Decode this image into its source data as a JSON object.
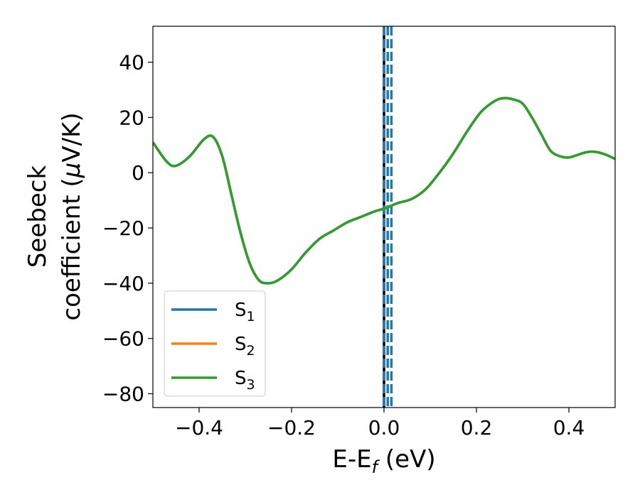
{
  "chart_data": {
    "type": "line",
    "xlabel": {
      "prefix": "E-E",
      "sub": "f",
      "suffix": " (eV)"
    },
    "ylabel": {
      "line1": "Seebeck",
      "line2_prefix": "coefficient  (",
      "mu": "μ",
      "line2_suffix": "V/K)"
    },
    "xlim": [
      -0.5,
      0.5
    ],
    "ylim": [
      -85,
      53
    ],
    "xticks": [
      -0.4,
      -0.2,
      0.0,
      0.2,
      0.4
    ],
    "xtick_labels": [
      "−0.4",
      "−0.2",
      "0.0",
      "0.2",
      "0.4"
    ],
    "yticks": [
      40,
      20,
      0,
      -20,
      -40,
      -60,
      -80
    ],
    "ytick_labels": [
      "40",
      "20",
      "0",
      "−20",
      "−40",
      "−60",
      "−80"
    ],
    "grid": false,
    "legend_position": "lower-left",
    "series": [
      {
        "name": "S",
        "sub": "1",
        "color": "#1f77b4",
        "x": [
          -0.5,
          -0.47,
          -0.45,
          -0.42,
          -0.39,
          -0.37,
          -0.35,
          -0.33,
          -0.31,
          -0.29,
          -0.27,
          -0.25,
          -0.23,
          -0.2,
          -0.17,
          -0.14,
          -0.11,
          -0.08,
          -0.05,
          -0.02,
          0.0,
          0.03,
          0.06,
          0.09,
          0.12,
          0.15,
          0.18,
          0.21,
          0.24,
          0.26,
          0.28,
          0.3,
          0.32,
          0.34,
          0.36,
          0.38,
          0.4,
          0.42,
          0.44,
          0.46,
          0.48,
          0.5
        ],
        "y": [
          11,
          4,
          2.5,
          6,
          12,
          13,
          6,
          -8,
          -22,
          -33,
          -39,
          -40,
          -39,
          -35,
          -29,
          -24,
          -21,
          -18,
          -16,
          -14,
          -13,
          -11,
          -9.5,
          -6,
          0,
          7,
          15,
          22,
          26,
          27,
          26.5,
          25,
          20,
          14,
          8,
          6,
          5.5,
          6.5,
          7.5,
          7.5,
          6.5,
          5
        ]
      },
      {
        "name": "S",
        "sub": "2",
        "color": "#ff7f0e",
        "x": [
          -0.5,
          -0.47,
          -0.45,
          -0.42,
          -0.39,
          -0.37,
          -0.35,
          -0.33,
          -0.31,
          -0.29,
          -0.27,
          -0.25,
          -0.23,
          -0.2,
          -0.17,
          -0.14,
          -0.11,
          -0.08,
          -0.05,
          -0.02,
          0.0,
          0.03,
          0.06,
          0.09,
          0.12,
          0.15,
          0.18,
          0.21,
          0.24,
          0.26,
          0.28,
          0.3,
          0.32,
          0.34,
          0.36,
          0.38,
          0.4,
          0.42,
          0.44,
          0.46,
          0.48,
          0.5
        ],
        "y": [
          11,
          4,
          2.5,
          6,
          12,
          13,
          6,
          -8,
          -22,
          -33,
          -39,
          -40,
          -39,
          -35,
          -29,
          -24,
          -21,
          -18,
          -16,
          -14,
          -13,
          -11,
          -9.5,
          -6,
          0,
          7,
          15,
          22,
          26,
          27,
          26.5,
          25,
          20,
          14,
          8,
          6,
          5.5,
          6.5,
          7.5,
          7.5,
          6.5,
          5
        ]
      },
      {
        "name": "S",
        "sub": "3",
        "color": "#2ca02c",
        "x": [
          -0.5,
          -0.47,
          -0.45,
          -0.42,
          -0.39,
          -0.37,
          -0.35,
          -0.33,
          -0.31,
          -0.29,
          -0.27,
          -0.25,
          -0.23,
          -0.2,
          -0.17,
          -0.14,
          -0.11,
          -0.08,
          -0.05,
          -0.02,
          0.0,
          0.03,
          0.06,
          0.09,
          0.12,
          0.15,
          0.18,
          0.21,
          0.24,
          0.26,
          0.28,
          0.3,
          0.32,
          0.34,
          0.36,
          0.38,
          0.4,
          0.42,
          0.44,
          0.46,
          0.48,
          0.5
        ],
        "y": [
          11,
          4,
          2.5,
          6,
          12,
          13,
          6,
          -8,
          -22,
          -33,
          -39,
          -40,
          -39,
          -35,
          -29,
          -24,
          -21,
          -18,
          -16,
          -14,
          -13,
          -11,
          -9.5,
          -6,
          0,
          7,
          15,
          22,
          26,
          27,
          26.5,
          25,
          20,
          14,
          8,
          6,
          5.5,
          6.5,
          7.5,
          7.5,
          6.5,
          5
        ]
      }
    ],
    "vertical_lines": [
      {
        "x": 0.0,
        "color": "#000000",
        "style": "solid"
      },
      {
        "x": 0.0,
        "color": "#1f77b4",
        "style": "dashed"
      },
      {
        "x": 0.008,
        "color": "#1f77b4",
        "style": "dashed"
      },
      {
        "x": 0.016,
        "color": "#1f77b4",
        "style": "dashed"
      }
    ]
  }
}
